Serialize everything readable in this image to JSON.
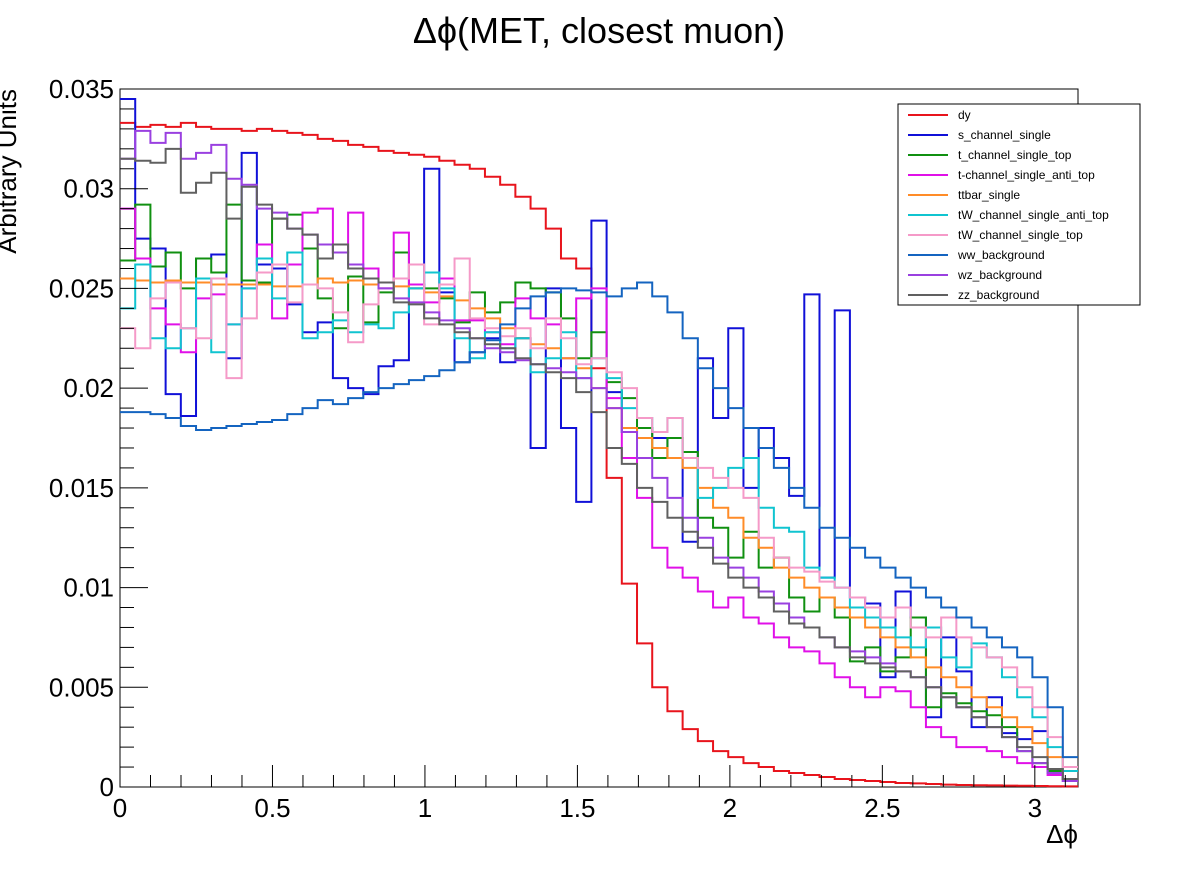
{
  "chart_data": {
    "type": "line",
    "title": "Δϕ(MET, closest muon)",
    "xlabel": "Δϕ",
    "ylabel": "Arbitrary Units",
    "xlim": [
      0,
      3.1416
    ],
    "ylim": [
      0,
      0.035
    ],
    "x_ticks": [
      0,
      0.5,
      1,
      1.5,
      2,
      2.5,
      3
    ],
    "x_tick_labels": [
      "0",
      "0.5",
      "1",
      "1.5",
      "2",
      "2.5",
      "3"
    ],
    "y_ticks": [
      0,
      0.005,
      0.01,
      0.015,
      0.02,
      0.025,
      0.03,
      0.035
    ],
    "y_tick_labels": [
      "0",
      "0.005",
      "0.01",
      "0.015",
      "0.02",
      "0.025",
      "0.03",
      "0.035"
    ],
    "bins": 63,
    "legend_position": "top-right",
    "series": [
      {
        "name": "dy",
        "color": "#e8141c",
        "values": [
          0.0333,
          0.0331,
          0.0332,
          0.0331,
          0.0333,
          0.0331,
          0.033,
          0.033,
          0.0329,
          0.033,
          0.0329,
          0.0328,
          0.0327,
          0.0325,
          0.0324,
          0.0322,
          0.0321,
          0.0319,
          0.0318,
          0.0317,
          0.0316,
          0.0314,
          0.0312,
          0.031,
          0.0306,
          0.0302,
          0.0296,
          0.029,
          0.028,
          0.0265,
          0.026,
          0.021,
          0.0155,
          0.0102,
          0.0072,
          0.005,
          0.0038,
          0.0029,
          0.0023,
          0.0018,
          0.0015,
          0.0012,
          0.001,
          0.0008,
          0.0007,
          0.0006,
          0.0005,
          0.0004,
          0.00035,
          0.0003,
          0.00025,
          0.0002,
          0.00018,
          0.00015,
          0.00012,
          0.0001,
          9e-05,
          8e-05,
          7e-05,
          6e-05,
          5e-05,
          4e-05,
          3e-05
        ]
      },
      {
        "name": "s_channel_single",
        "color": "#1010d8",
        "values": [
          0.0345,
          0.0275,
          0.027,
          0.0197,
          0.0186,
          0.0265,
          0.0267,
          0.0215,
          0.0318,
          0.0262,
          0.026,
          0.0242,
          0.0228,
          0.0233,
          0.0205,
          0.02,
          0.0197,
          0.0211,
          0.0214,
          0.025,
          0.031,
          0.0248,
          0.0213,
          0.0218,
          0.0225,
          0.0213,
          0.0225,
          0.017,
          0.025,
          0.018,
          0.0143,
          0.0284,
          0.0198,
          0.0178,
          0.018,
          0.0175,
          0.0165,
          0.0123,
          0.0215,
          0.0185,
          0.023,
          0.015,
          0.018,
          0.0165,
          0.0146,
          0.0247,
          0.0105,
          0.0239,
          0.0095,
          0.0092,
          0.0055,
          0.0098,
          0.0085,
          0.0035,
          0.0075,
          0.0058,
          0.003,
          0.0045,
          0.0027,
          0.0024,
          0.0028,
          0.0008,
          0.0004
        ]
      },
      {
        "name": "t_channel_single_top",
        "color": "#109010",
        "values": [
          0.0264,
          0.0292,
          0.0261,
          0.0268,
          0.025,
          0.0265,
          0.0258,
          0.0292,
          0.0254,
          0.0253,
          0.0285,
          0.0287,
          0.027,
          0.0245,
          0.023,
          0.0256,
          0.0233,
          0.0248,
          0.0268,
          0.0252,
          0.025,
          0.0245,
          0.0233,
          0.0248,
          0.0238,
          0.0243,
          0.0253,
          0.025,
          0.0248,
          0.0235,
          0.0215,
          0.0228,
          0.0203,
          0.0195,
          0.018,
          0.0165,
          0.0175,
          0.0168,
          0.0135,
          0.013,
          0.0115,
          0.0128,
          0.011,
          0.0115,
          0.0095,
          0.0088,
          0.0095,
          0.0085,
          0.0063,
          0.007,
          0.0058,
          0.0065,
          0.0085,
          0.004,
          0.0047,
          0.0042,
          0.0038,
          0.0036,
          0.003,
          0.0018,
          0.0012,
          0.0008,
          0.0004
        ]
      },
      {
        "name": "t-channel_single_anti_top",
        "color": "#e010e8",
        "values": [
          0.029,
          0.0265,
          0.024,
          0.0232,
          0.0218,
          0.0245,
          0.0247,
          0.0232,
          0.025,
          0.0272,
          0.0235,
          0.0262,
          0.0288,
          0.029,
          0.0268,
          0.0288,
          0.026,
          0.025,
          0.0278,
          0.0252,
          0.0243,
          0.0255,
          0.0234,
          0.0234,
          0.0228,
          0.0222,
          0.0245,
          0.0235,
          0.0232,
          0.0215,
          0.0245,
          0.025,
          0.0195,
          0.0165,
          0.0145,
          0.012,
          0.011,
          0.0105,
          0.0098,
          0.009,
          0.0095,
          0.0085,
          0.0082,
          0.0075,
          0.007,
          0.0068,
          0.0062,
          0.0055,
          0.005,
          0.0045,
          0.005,
          0.0048,
          0.004,
          0.003,
          0.0025,
          0.002,
          0.002,
          0.0018,
          0.0015,
          0.0012,
          0.001,
          0.0006,
          0.0003
        ]
      },
      {
        "name": "ttbar_single",
        "color": "#ff8c28",
        "values": [
          0.0255,
          0.0254,
          0.0253,
          0.0254,
          0.0253,
          0.0253,
          0.0252,
          0.0252,
          0.0252,
          0.0252,
          0.0251,
          0.0251,
          0.0252,
          0.0255,
          0.0253,
          0.0254,
          0.0252,
          0.0253,
          0.0251,
          0.025,
          0.0248,
          0.0246,
          0.0244,
          0.024,
          0.0235,
          0.023,
          0.0225,
          0.0222,
          0.022,
          0.0215,
          0.021,
          0.02,
          0.019,
          0.018,
          0.0175,
          0.017,
          0.0165,
          0.016,
          0.015,
          0.014,
          0.0135,
          0.0125,
          0.012,
          0.011,
          0.0105,
          0.01,
          0.0095,
          0.009,
          0.0085,
          0.008,
          0.0075,
          0.007,
          0.0065,
          0.006,
          0.0055,
          0.005,
          0.0045,
          0.004,
          0.0035,
          0.003,
          0.0022,
          0.0015,
          0.0008
        ]
      },
      {
        "name": "tW_channel_single_anti_top",
        "color": "#10c4d0",
        "values": [
          0.024,
          0.0262,
          0.0225,
          0.022,
          0.023,
          0.0255,
          0.0218,
          0.0232,
          0.025,
          0.0265,
          0.0245,
          0.0268,
          0.0225,
          0.0228,
          0.0234,
          0.0228,
          0.0232,
          0.023,
          0.0238,
          0.025,
          0.0258,
          0.025,
          0.0225,
          0.0215,
          0.0228,
          0.022,
          0.0225,
          0.0208,
          0.0215,
          0.0228,
          0.0205,
          0.0215,
          0.0205,
          0.019,
          0.0185,
          0.0178,
          0.0185,
          0.0165,
          0.0145,
          0.015,
          0.016,
          0.0165,
          0.014,
          0.013,
          0.0128,
          0.011,
          0.0105,
          0.01,
          0.009,
          0.0085,
          0.008,
          0.0075,
          0.007,
          0.008,
          0.0065,
          0.006,
          0.0072,
          0.0065,
          0.0055,
          0.0045,
          0.0035,
          0.002,
          0.0008
        ]
      },
      {
        "name": "tW_channel_single_top",
        "color": "#f59ac8",
        "values": [
          0.023,
          0.022,
          0.0245,
          0.0253,
          0.023,
          0.0225,
          0.0255,
          0.0205,
          0.0235,
          0.0258,
          0.0262,
          0.0243,
          0.0252,
          0.025,
          0.0238,
          0.0223,
          0.0242,
          0.025,
          0.0255,
          0.0262,
          0.0232,
          0.0252,
          0.0265,
          0.0235,
          0.023,
          0.0226,
          0.023,
          0.022,
          0.0235,
          0.0225,
          0.0212,
          0.0215,
          0.0208,
          0.02,
          0.0185,
          0.0178,
          0.0185,
          0.0165,
          0.016,
          0.0155,
          0.015,
          0.0145,
          0.0125,
          0.0115,
          0.011,
          0.0108,
          0.0103,
          0.01,
          0.0095,
          0.009,
          0.0085,
          0.009,
          0.008,
          0.0075,
          0.0085,
          0.0075,
          0.007,
          0.0065,
          0.006,
          0.005,
          0.004,
          0.0025,
          0.001
        ]
      },
      {
        "name": "ww_background",
        "color": "#1464c0",
        "values": [
          0.0188,
          0.0188,
          0.0187,
          0.0185,
          0.0181,
          0.0179,
          0.018,
          0.0181,
          0.0182,
          0.0183,
          0.0184,
          0.0187,
          0.019,
          0.0194,
          0.0192,
          0.0195,
          0.0198,
          0.02,
          0.0202,
          0.0204,
          0.0206,
          0.0209,
          0.0213,
          0.0218,
          0.0224,
          0.0232,
          0.024,
          0.0246,
          0.0248,
          0.025,
          0.0249,
          0.0248,
          0.0246,
          0.025,
          0.0253,
          0.0246,
          0.0238,
          0.0225,
          0.021,
          0.02,
          0.019,
          0.018,
          0.017,
          0.016,
          0.015,
          0.014,
          0.013,
          0.0125,
          0.012,
          0.0115,
          0.011,
          0.0105,
          0.01,
          0.0095,
          0.009,
          0.0085,
          0.008,
          0.0075,
          0.007,
          0.0065,
          0.0055,
          0.004,
          0.0015
        ]
      },
      {
        "name": "wz_background",
        "color": "#9a40e0",
        "values": [
          0.0315,
          0.0329,
          0.0323,
          0.0328,
          0.0315,
          0.0318,
          0.0322,
          0.0305,
          0.0302,
          0.029,
          0.0288,
          0.028,
          0.0277,
          0.0272,
          0.0268,
          0.0262,
          0.0255,
          0.025,
          0.0245,
          0.0243,
          0.0238,
          0.0234,
          0.023,
          0.0225,
          0.022,
          0.0218,
          0.0214,
          0.0212,
          0.021,
          0.0208,
          0.0205,
          0.02,
          0.019,
          0.0178,
          0.0165,
          0.0155,
          0.0145,
          0.0135,
          0.0125,
          0.0115,
          0.011,
          0.0105,
          0.0098,
          0.0092,
          0.0085,
          0.008,
          0.0075,
          0.007,
          0.0068,
          0.0065,
          0.0062,
          0.0058,
          0.0055,
          0.005,
          0.0045,
          0.004,
          0.0035,
          0.003,
          0.0025,
          0.0018,
          0.0012,
          0.0007,
          0.0003
        ]
      },
      {
        "name": "zz_background",
        "color": "#606060",
        "values": [
          0.0315,
          0.0314,
          0.0313,
          0.032,
          0.0298,
          0.0303,
          0.0308,
          0.0285,
          0.0301,
          0.0292,
          0.0285,
          0.028,
          0.0277,
          0.0265,
          0.0272,
          0.026,
          0.0255,
          0.0253,
          0.0243,
          0.0242,
          0.0235,
          0.0232,
          0.0228,
          0.0225,
          0.0222,
          0.022,
          0.0215,
          0.0212,
          0.0208,
          0.0205,
          0.0198,
          0.0188,
          0.017,
          0.0162,
          0.015,
          0.0143,
          0.0135,
          0.0128,
          0.012,
          0.0112,
          0.0105,
          0.01,
          0.0095,
          0.0088,
          0.0082,
          0.008,
          0.0075,
          0.007,
          0.0065,
          0.0062,
          0.006,
          0.0058,
          0.0055,
          0.005,
          0.0045,
          0.004,
          0.0035,
          0.003,
          0.0025,
          0.002,
          0.0015,
          0.0009,
          0.0004
        ]
      }
    ]
  }
}
